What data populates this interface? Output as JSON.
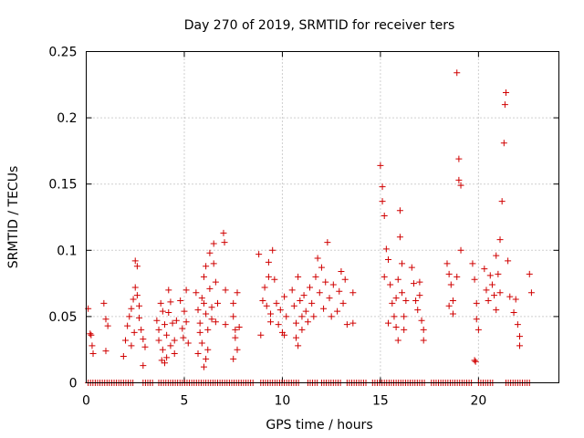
{
  "chart_data": {
    "type": "scatter",
    "title": "Day 270 of 2019, SRMTID for receiver ters",
    "xlabel": "GPS time / hours",
    "ylabel": "SRMTID / TECUs",
    "xlim": [
      0,
      24.1
    ],
    "ylim": [
      0,
      0.25
    ],
    "xticks": [
      0,
      5,
      10,
      15,
      20
    ],
    "xtick_labels": [
      "0",
      "5",
      "10",
      "15",
      "20"
    ],
    "yticks": [
      0,
      0.05,
      0.1,
      0.15,
      0.2,
      0.25
    ],
    "ytick_labels": [
      "0",
      "0.05",
      "0.1",
      "0.15",
      "0.2",
      "0.25"
    ],
    "grid": true,
    "marker": "+",
    "color": "#d00000",
    "series": [
      {
        "name": "SRMTID",
        "points": [
          [
            0.1,
            0.056
          ],
          [
            0.2,
            0.037
          ],
          [
            0.25,
            0.036
          ],
          [
            0.3,
            0.028
          ],
          [
            0.35,
            0.022
          ],
          [
            0.9,
            0.06
          ],
          [
            1.0,
            0.048
          ],
          [
            1.1,
            0.043
          ],
          [
            1.0,
            0.024
          ],
          [
            1.9,
            0.02
          ],
          [
            2.0,
            0.032
          ],
          [
            2.1,
            0.043
          ],
          [
            2.2,
            0.05
          ],
          [
            2.3,
            0.028
          ],
          [
            2.4,
            0.063
          ],
          [
            2.5,
            0.072
          ],
          [
            2.5,
            0.092
          ],
          [
            2.6,
            0.088
          ],
          [
            2.6,
            0.066
          ],
          [
            2.7,
            0.058
          ],
          [
            2.7,
            0.049
          ],
          [
            2.8,
            0.04
          ],
          [
            2.9,
            0.033
          ],
          [
            3.0,
            0.027
          ],
          [
            2.9,
            0.013
          ],
          [
            2.3,
            0.056
          ],
          [
            2.45,
            0.038
          ],
          [
            3.6,
            0.047
          ],
          [
            3.7,
            0.04
          ],
          [
            3.7,
            0.032
          ],
          [
            3.8,
            0.06
          ],
          [
            3.9,
            0.054
          ],
          [
            3.9,
            0.025
          ],
          [
            4.0,
            0.044
          ],
          [
            4.1,
            0.036
          ],
          [
            4.2,
            0.053
          ],
          [
            4.2,
            0.07
          ],
          [
            4.3,
            0.061
          ],
          [
            4.3,
            0.028
          ],
          [
            4.4,
            0.045
          ],
          [
            4.5,
            0.032
          ],
          [
            4.5,
            0.022
          ],
          [
            4.6,
            0.047
          ],
          [
            4.0,
            0.015
          ],
          [
            4.1,
            0.019
          ],
          [
            3.85,
            0.017
          ],
          [
            4.8,
            0.062
          ],
          [
            4.9,
            0.041
          ],
          [
            4.95,
            0.034
          ],
          [
            5.0,
            0.054
          ],
          [
            5.1,
            0.046
          ],
          [
            5.1,
            0.07
          ],
          [
            5.2,
            0.03
          ],
          [
            5.6,
            0.068
          ],
          [
            5.7,
            0.055
          ],
          [
            5.8,
            0.045
          ],
          [
            5.8,
            0.038
          ],
          [
            5.9,
            0.03
          ],
          [
            5.9,
            0.064
          ],
          [
            6.0,
            0.06
          ],
          [
            6.0,
            0.08
          ],
          [
            6.1,
            0.052
          ],
          [
            6.1,
            0.088
          ],
          [
            6.2,
            0.04
          ],
          [
            6.2,
            0.025
          ],
          [
            6.3,
            0.071
          ],
          [
            6.3,
            0.098
          ],
          [
            6.4,
            0.057
          ],
          [
            6.4,
            0.048
          ],
          [
            6.5,
            0.09
          ],
          [
            6.5,
            0.105
          ],
          [
            6.6,
            0.076
          ],
          [
            6.6,
            0.046
          ],
          [
            6.7,
            0.06
          ],
          [
            6.1,
            0.018
          ],
          [
            6.0,
            0.012
          ],
          [
            5.7,
            0.022
          ],
          [
            7.0,
            0.113
          ],
          [
            7.05,
            0.106
          ],
          [
            7.1,
            0.07
          ],
          [
            7.1,
            0.044
          ],
          [
            7.5,
            0.06
          ],
          [
            7.5,
            0.05
          ],
          [
            7.6,
            0.04
          ],
          [
            7.6,
            0.034
          ],
          [
            7.7,
            0.068
          ],
          [
            7.7,
            0.025
          ],
          [
            7.8,
            0.042
          ],
          [
            7.5,
            0.018
          ],
          [
            8.8,
            0.097
          ],
          [
            9.0,
            0.062
          ],
          [
            9.1,
            0.072
          ],
          [
            9.2,
            0.058
          ],
          [
            9.3,
            0.091
          ],
          [
            9.3,
            0.08
          ],
          [
            9.4,
            0.052
          ],
          [
            9.5,
            0.1
          ],
          [
            9.6,
            0.078
          ],
          [
            9.7,
            0.06
          ],
          [
            9.8,
            0.044
          ],
          [
            9.9,
            0.055
          ],
          [
            10.0,
            0.038
          ],
          [
            10.1,
            0.036
          ],
          [
            10.1,
            0.065
          ],
          [
            10.2,
            0.05
          ],
          [
            9.4,
            0.046
          ],
          [
            8.9,
            0.036
          ],
          [
            10.5,
            0.07
          ],
          [
            10.6,
            0.058
          ],
          [
            10.7,
            0.045
          ],
          [
            10.7,
            0.034
          ],
          [
            10.8,
            0.08
          ],
          [
            10.8,
            0.028
          ],
          [
            10.9,
            0.062
          ],
          [
            11.0,
            0.05
          ],
          [
            11.0,
            0.04
          ],
          [
            11.1,
            0.066
          ],
          [
            11.2,
            0.054
          ],
          [
            11.3,
            0.046
          ],
          [
            11.4,
            0.072
          ],
          [
            11.5,
            0.06
          ],
          [
            11.6,
            0.05
          ],
          [
            11.7,
            0.08
          ],
          [
            11.8,
            0.094
          ],
          [
            11.9,
            0.068
          ],
          [
            12.0,
            0.087
          ],
          [
            12.1,
            0.056
          ],
          [
            12.2,
            0.076
          ],
          [
            12.3,
            0.106
          ],
          [
            12.4,
            0.064
          ],
          [
            12.5,
            0.05
          ],
          [
            12.6,
            0.074
          ],
          [
            12.8,
            0.054
          ],
          [
            12.9,
            0.069
          ],
          [
            13.0,
            0.084
          ],
          [
            13.1,
            0.06
          ],
          [
            13.2,
            0.078
          ],
          [
            13.3,
            0.044
          ],
          [
            13.6,
            0.068
          ],
          [
            13.6,
            0.045
          ],
          [
            15.0,
            0.164
          ],
          [
            15.1,
            0.148
          ],
          [
            15.1,
            0.137
          ],
          [
            15.2,
            0.126
          ],
          [
            15.2,
            0.08
          ],
          [
            15.3,
            0.101
          ],
          [
            15.4,
            0.093
          ],
          [
            15.4,
            0.045
          ],
          [
            15.5,
            0.074
          ],
          [
            15.6,
            0.06
          ],
          [
            15.7,
            0.05
          ],
          [
            15.8,
            0.042
          ],
          [
            15.9,
            0.078
          ],
          [
            16.0,
            0.11
          ],
          [
            16.0,
            0.13
          ],
          [
            16.1,
            0.068
          ],
          [
            16.1,
            0.09
          ],
          [
            16.2,
            0.05
          ],
          [
            16.2,
            0.04
          ],
          [
            16.3,
            0.062
          ],
          [
            15.8,
            0.064
          ],
          [
            15.9,
            0.032
          ],
          [
            16.6,
            0.087
          ],
          [
            16.7,
            0.075
          ],
          [
            16.8,
            0.062
          ],
          [
            16.9,
            0.055
          ],
          [
            17.0,
            0.066
          ],
          [
            17.1,
            0.047
          ],
          [
            17.2,
            0.04
          ],
          [
            17.2,
            0.032
          ],
          [
            17.0,
            0.076
          ],
          [
            18.4,
            0.09
          ],
          [
            18.5,
            0.082
          ],
          [
            18.6,
            0.074
          ],
          [
            18.7,
            0.062
          ],
          [
            18.7,
            0.052
          ],
          [
            18.9,
            0.234
          ],
          [
            19.0,
            0.169
          ],
          [
            19.0,
            0.153
          ],
          [
            19.1,
            0.149
          ],
          [
            19.1,
            0.1
          ],
          [
            18.9,
            0.08
          ],
          [
            18.5,
            0.058
          ],
          [
            19.7,
            0.09
          ],
          [
            19.8,
            0.078
          ],
          [
            19.9,
            0.06
          ],
          [
            19.9,
            0.048
          ],
          [
            20.0,
            0.04
          ],
          [
            19.8,
            0.017
          ],
          [
            19.85,
            0.016
          ],
          [
            20.3,
            0.086
          ],
          [
            20.4,
            0.07
          ],
          [
            20.5,
            0.062
          ],
          [
            20.6,
            0.081
          ],
          [
            20.7,
            0.074
          ],
          [
            20.8,
            0.066
          ],
          [
            20.9,
            0.096
          ],
          [
            20.9,
            0.055
          ],
          [
            21.0,
            0.082
          ],
          [
            21.1,
            0.108
          ],
          [
            21.1,
            0.068
          ],
          [
            21.2,
            0.137
          ],
          [
            21.3,
            0.181
          ],
          [
            21.35,
            0.21
          ],
          [
            21.4,
            0.219
          ],
          [
            21.5,
            0.092
          ],
          [
            21.6,
            0.065
          ],
          [
            21.8,
            0.053
          ],
          [
            21.9,
            0.063
          ],
          [
            22.0,
            0.044
          ],
          [
            22.1,
            0.028
          ],
          [
            22.1,
            0.035
          ],
          [
            22.6,
            0.082
          ],
          [
            22.7,
            0.068
          ]
        ]
      }
    ],
    "zero_row": {
      "y": 0,
      "x_ranges": [
        [
          0.1,
          2.4
        ],
        [
          2.9,
          3.4
        ],
        [
          3.7,
          8.6
        ],
        [
          8.9,
          10.9
        ],
        [
          11.3,
          11.8
        ],
        [
          12.0,
          13.0
        ],
        [
          13.3,
          14.3
        ],
        [
          14.6,
          17.3
        ],
        [
          17.6,
          19.7
        ],
        [
          20.0,
          20.8
        ],
        [
          21.4,
          22.7
        ]
      ]
    }
  }
}
